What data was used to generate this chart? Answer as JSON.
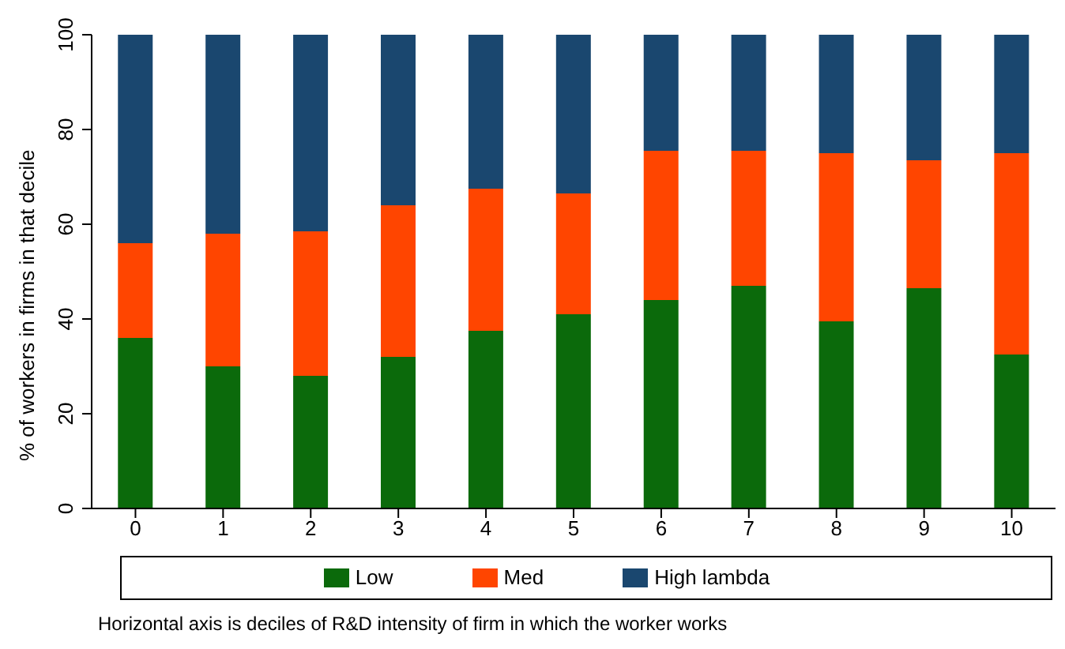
{
  "chart_data": {
    "type": "bar",
    "stacked": true,
    "ylabel": "% of workers in firms in that decile",
    "categories": [
      "0",
      "1",
      "2",
      "3",
      "4",
      "5",
      "6",
      "7",
      "8",
      "9",
      "10"
    ],
    "series": [
      {
        "name": "Low",
        "color": "#0b6a0b",
        "values": [
          36,
          30,
          28,
          32,
          37.5,
          41,
          44,
          47,
          39.5,
          46.5,
          32.5
        ]
      },
      {
        "name": "Med",
        "color": "#ff4500",
        "values": [
          20,
          28,
          30.5,
          32,
          30,
          25.5,
          31.5,
          28.5,
          35.5,
          27,
          42.5
        ]
      },
      {
        "name": "High lambda",
        "color": "#1a476f",
        "values": [
          44,
          42,
          41.5,
          36,
          32.5,
          33.5,
          24.5,
          24.5,
          25,
          26.5,
          25
        ]
      }
    ],
    "ylim": [
      0,
      100
    ],
    "yticks": [
      0,
      20,
      40,
      60,
      80,
      100
    ],
    "grid": false,
    "legend": "bottom",
    "annotations": [
      "Horizontal axis is deciles of R&D intensity of firm in which the worker works"
    ]
  }
}
